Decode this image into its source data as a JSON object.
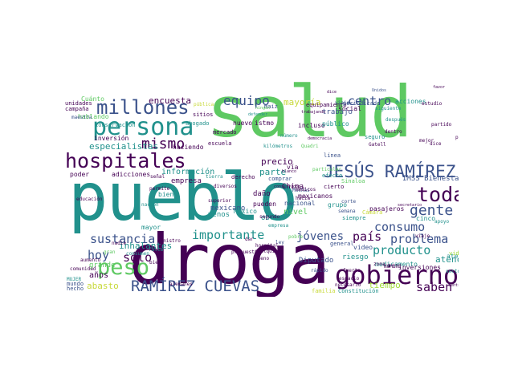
{
  "palette": {
    "purple": "#440154",
    "indigo": "#3b528b",
    "teal": "#21918c",
    "green": "#5ec962",
    "yellow": "#c8d93a",
    "navy": "#31688e",
    "lime": "#a0da39"
  },
  "words": [
    "salud",
    "pueblo",
    "droga",
    "gobierno",
    "persona",
    "millones",
    "hospitales",
    "JESÚS RAMÍREZ",
    "RAMÍREZ CUEVAS",
    "peso",
    "toda",
    "gente",
    "consumo",
    "problema",
    "sustancia",
    "importante",
    "producto",
    "país",
    "jóvenes",
    "equipo",
    "centro",
    "mismo",
    "especialistas",
    "sólo",
    "hoy",
    "saben",
    "atención",
    "tiempo",
    "encuesta",
    "mayoría",
    "IMSS Bienestar",
    "daño",
    "China",
    "nivel",
    "parte",
    "vía",
    "precio",
    "información",
    "empresa",
    "inhalantes",
    "grande",
    "años",
    "abasto",
    "Diputado",
    "riesgo",
    "video",
    "mexicano",
    "menos",
    "obra",
    "pueden",
    "cinco",
    "grupo",
    "social",
    "acciones",
    "hablando",
    "inversión",
    "maestra",
    "conservación",
    "Cuánto",
    "unidades",
    "campaña",
    "escuela",
    "haciendo",
    "nuevo",
    "istmo",
    "trabajo",
    "incluso",
    "público",
    "comprar",
    "derecho",
    "consumen",
    "poder",
    "adicciones",
    "bien",
    "seguro",
    "línea",
    "Muchas",
    "cierto",
    "efecto",
    "Sinaloa",
    "pasajeros",
    "medicamento",
    "Constitución",
    "familia",
    "Cámara",
    "siempre",
    "atención",
    "mundo",
    "hecho",
    "vida",
    "semana",
    "inversiones",
    "general",
    "abogado",
    "mercado",
    "maíz",
    "equipamiento",
    "mexicanos",
    "nacional",
    "México",
    "pobre",
    "periodicado",
    "siguiente",
    "Unidos",
    "Quadri",
    "después",
    "partido",
    "estudio",
    "política",
    "dice",
    "dijo",
    "favor",
    "educación",
    "superior",
    "aumento",
    "mayor",
    "nadie",
    "gran",
    "bien",
    "permite",
    "propuesta",
    "hacia",
    "fuerte",
    "mejor",
    "conservador",
    "secretario",
    "Gatell",
    "dentro",
    "NOMBRE",
    "blanco",
    "kilómetros",
    "democracia",
    "empresa",
    "viaje",
    "apoyo",
    "puedo",
    "número",
    "segundo",
    "sitios",
    "pública",
    "cualquier",
    "Bueno",
    "ley",
    "tierra",
    "ministro",
    "espacio",
    "diversos",
    "nación",
    "trabajando",
    "ningún",
    "defender",
    "dar",
    "hospital",
    "médicos",
    "viaje",
    "corte",
    "falta",
    "señal",
    "alemanes",
    "comunidad",
    "MUJER",
    "particular",
    "dice",
    "necesario",
    "sector",
    "zona",
    "rápido",
    "centro",
    "debemos",
    "sido",
    "imágenes",
    "informar",
    "vamos",
    "afortunadamente",
    "sur",
    "sur",
    "medicina",
    "acuerdo",
    "sintoría",
    "existe"
  ]
}
